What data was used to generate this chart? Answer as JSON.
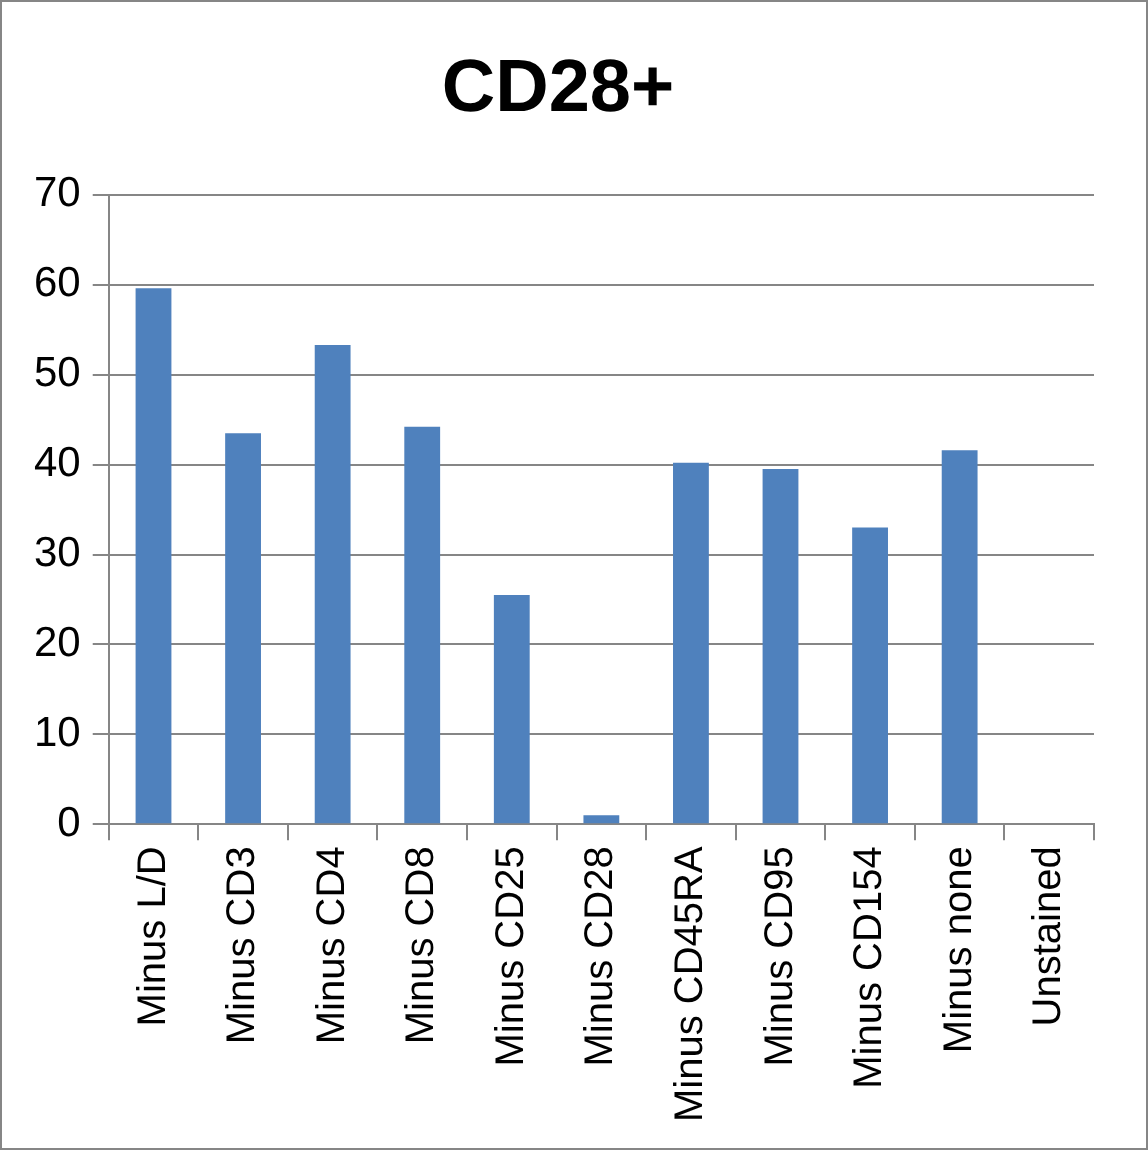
{
  "chart_data": {
    "type": "bar",
    "title": "CD28+",
    "categories": [
      "Minus L/D",
      "Minus CD3",
      "Minus CD4",
      "Minus CD8",
      "Minus CD25",
      "Minus CD28",
      "Minus CD45RA",
      "Minus CD95",
      "Minus CD154",
      "Minus none",
      "Unstained"
    ],
    "values": [
      59.6,
      43.5,
      53.3,
      44.2,
      25.5,
      1.0,
      40.2,
      39.5,
      33.0,
      41.6,
      0
    ],
    "color": "#4f81bd",
    "ylim": [
      0,
      70
    ],
    "yticks": [
      0,
      10,
      20,
      30,
      40,
      50,
      60,
      70
    ],
    "grid": "y"
  }
}
